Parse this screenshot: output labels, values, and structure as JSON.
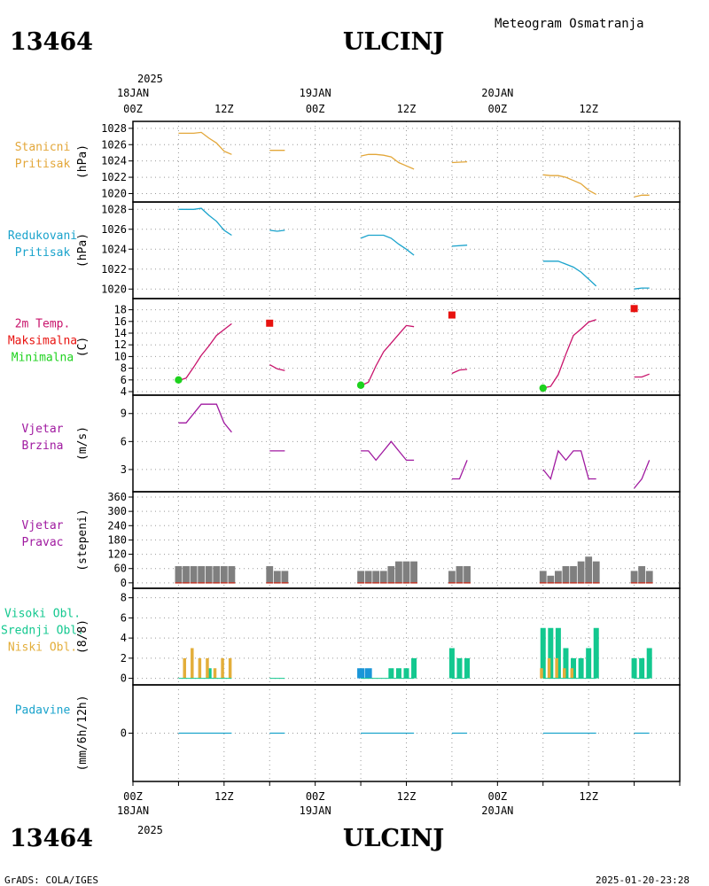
{
  "station_id": "13464",
  "station_name": "ULCINJ",
  "header_text": "Meteogram Osmatranja",
  "footer_left": "GrADS: COLA/IGES",
  "footer_right": "2025-01-20-23:28",
  "time_axis": {
    "top_year": "2025",
    "bottom_year": "2025",
    "ticks": [
      {
        "h": 0,
        "hour": "00Z",
        "day": "18JAN"
      },
      {
        "h": 12,
        "hour": "12Z",
        "day": ""
      },
      {
        "h": 24,
        "hour": "00Z",
        "day": "19JAN"
      },
      {
        "h": 36,
        "hour": "12Z",
        "day": ""
      },
      {
        "h": 48,
        "hour": "00Z",
        "day": "20JAN"
      },
      {
        "h": 60,
        "hour": "12Z",
        "day": ""
      }
    ]
  },
  "colors": {
    "pressure_station": "#e3a73a",
    "pressure_reduced": "#1aa3cc",
    "temp_line": "#c8136b",
    "temp_max": "#e8120f",
    "temp_min": "#1ed21e",
    "wind": "#a01aa0",
    "wind_dir_bar": "#7f7f7f",
    "wind_dir_base": "#c0392b",
    "cloud_high": "#13c88f",
    "cloud_mid": "#1a96d8",
    "cloud_low": "#e3ae3a",
    "precip": "#1aa3cc"
  },
  "chart_data": [
    {
      "id": "stanicni",
      "type": "line",
      "labels": [
        "Stanicni",
        "Pritisak"
      ],
      "label_colors": [
        "#e3a73a",
        "#e3a73a"
      ],
      "ylabel": "(hPa)",
      "ylim": [
        1019.4,
        1028.2
      ],
      "yticks": [
        1020,
        1022,
        1024,
        1026,
        1028
      ],
      "grid": true,
      "series": [
        {
          "color": "#e3a73a",
          "segments": [
            [
              [
                6,
                1027.4
              ],
              [
                7,
                1027.4
              ],
              [
                8,
                1027.4
              ],
              [
                9,
                1027.5
              ],
              [
                10,
                1026.8
              ],
              [
                11,
                1026.2
              ],
              [
                12,
                1025.2
              ],
              [
                13,
                1024.8
              ]
            ],
            [
              [
                18,
                1025.3
              ],
              [
                20,
                1025.3
              ]
            ],
            [
              [
                30,
                1024.6
              ],
              [
                31,
                1024.8
              ],
              [
                32,
                1024.8
              ],
              [
                33,
                1024.7
              ],
              [
                34,
                1024.5
              ],
              [
                35,
                1023.8
              ],
              [
                36,
                1023.4
              ],
              [
                37,
                1023.0
              ]
            ],
            [
              [
                42,
                1023.8
              ],
              [
                44,
                1023.9
              ]
            ],
            [
              [
                54,
                1022.3
              ],
              [
                55,
                1022.2
              ],
              [
                56,
                1022.2
              ],
              [
                57,
                1022.0
              ],
              [
                58,
                1021.6
              ],
              [
                59,
                1021.2
              ],
              [
                60,
                1020.4
              ],
              [
                61,
                1019.9
              ]
            ],
            [
              [
                66,
                1019.6
              ],
              [
                67,
                1019.8
              ],
              [
                68,
                1019.8
              ]
            ]
          ]
        }
      ]
    },
    {
      "id": "redukovani",
      "type": "line",
      "labels": [
        "Redukovani",
        "Pritisak"
      ],
      "label_colors": [
        "#1aa3cc",
        "#1aa3cc"
      ],
      "ylabel": "(hPa)",
      "ylim": [
        1019.4,
        1028.2
      ],
      "yticks": [
        1020,
        1022,
        1024,
        1026,
        1028
      ],
      "grid": true,
      "series": [
        {
          "color": "#1aa3cc",
          "segments": [
            [
              [
                6,
                1028.0
              ],
              [
                7,
                1028.0
              ],
              [
                8,
                1028.0
              ],
              [
                9,
                1028.1
              ],
              [
                10,
                1027.4
              ],
              [
                11,
                1026.8
              ],
              [
                12,
                1025.9
              ],
              [
                13,
                1025.4
              ]
            ],
            [
              [
                18,
                1025.9
              ],
              [
                19,
                1025.8
              ],
              [
                20,
                1025.9
              ]
            ],
            [
              [
                30,
                1025.1
              ],
              [
                31,
                1025.4
              ],
              [
                32,
                1025.4
              ],
              [
                33,
                1025.4
              ],
              [
                34,
                1025.1
              ],
              [
                35,
                1024.5
              ],
              [
                36,
                1024.0
              ],
              [
                37,
                1023.4
              ]
            ],
            [
              [
                42,
                1024.3
              ],
              [
                44,
                1024.4
              ]
            ],
            [
              [
                54,
                1022.8
              ],
              [
                55,
                1022.8
              ],
              [
                56,
                1022.8
              ],
              [
                57,
                1022.5
              ],
              [
                58,
                1022.2
              ],
              [
                59,
                1021.7
              ],
              [
                60,
                1021.0
              ],
              [
                61,
                1020.3
              ]
            ],
            [
              [
                66,
                1020.0
              ],
              [
                67,
                1020.1
              ],
              [
                68,
                1020.1
              ]
            ]
          ]
        }
      ]
    },
    {
      "id": "temperatura",
      "type": "line",
      "labels": [
        "2m Temp.",
        "Maksimalna",
        "Minimalna"
      ],
      "label_colors": [
        "#c8136b",
        "#e8120f",
        "#1ed21e"
      ],
      "ylabel": "(C)",
      "ylim": [
        4,
        19
      ],
      "yticks": [
        4,
        6,
        8,
        10,
        12,
        14,
        16,
        18
      ],
      "grid": true,
      "series": [
        {
          "color": "#c8136b",
          "segments": [
            [
              [
                6,
                5.9
              ],
              [
                7,
                6.3
              ],
              [
                8,
                8.2
              ],
              [
                9,
                10.2
              ],
              [
                10,
                11.8
              ],
              [
                11,
                13.6
              ],
              [
                12,
                14.6
              ],
              [
                13,
                15.6
              ]
            ],
            [
              [
                18,
                8.6
              ],
              [
                19,
                7.9
              ],
              [
                20,
                7.6
              ]
            ],
            [
              [
                30,
                5.0
              ],
              [
                31,
                5.6
              ],
              [
                32,
                8.4
              ],
              [
                33,
                10.8
              ],
              [
                34,
                12.3
              ],
              [
                35,
                13.8
              ],
              [
                36,
                15.3
              ],
              [
                37,
                15.1
              ]
            ],
            [
              [
                42,
                7.1
              ],
              [
                43,
                7.7
              ],
              [
                44,
                7.8
              ]
            ],
            [
              [
                54,
                4.6
              ],
              [
                55,
                4.9
              ],
              [
                56,
                6.9
              ],
              [
                57,
                10.4
              ],
              [
                58,
                13.6
              ],
              [
                59,
                14.7
              ],
              [
                60,
                15.9
              ],
              [
                61,
                16.3
              ]
            ],
            [
              [
                66,
                6.5
              ],
              [
                67,
                6.5
              ],
              [
                68,
                7.0
              ]
            ]
          ]
        }
      ],
      "maxima": [
        [
          18,
          15.7
        ],
        [
          42,
          17.1
        ],
        [
          66,
          18.2
        ]
      ],
      "minima": [
        [
          6,
          6.0
        ],
        [
          30,
          5.1
        ],
        [
          54,
          4.6
        ]
      ]
    },
    {
      "id": "vjetar_brzina",
      "type": "line",
      "labels": [
        "Vjetar",
        "Brzina"
      ],
      "label_colors": [
        "#a01aa0",
        "#a01aa0"
      ],
      "ylabel": "(m/s)",
      "ylim": [
        1,
        10.4
      ],
      "yticks": [
        3,
        6,
        9
      ],
      "grid": true,
      "series": [
        {
          "color": "#a01aa0",
          "segments": [
            [
              [
                6,
                8
              ],
              [
                7,
                8
              ],
              [
                8,
                9
              ],
              [
                9,
                10
              ],
              [
                10,
                10
              ],
              [
                11,
                10
              ],
              [
                12,
                8
              ],
              [
                13,
                7
              ]
            ],
            [
              [
                18,
                5
              ],
              [
                20,
                5
              ]
            ],
            [
              [
                30,
                5
              ],
              [
                31,
                5
              ],
              [
                32,
                4
              ],
              [
                33,
                5
              ],
              [
                34,
                6
              ],
              [
                35,
                5
              ],
              [
                36,
                4
              ],
              [
                37,
                4
              ]
            ],
            [
              [
                42,
                2
              ],
              [
                43,
                2
              ],
              [
                44,
                4
              ]
            ],
            [
              [
                54,
                3
              ],
              [
                55,
                2
              ],
              [
                56,
                5
              ],
              [
                57,
                4
              ],
              [
                58,
                5
              ],
              [
                59,
                5
              ],
              [
                60,
                2
              ],
              [
                61,
                2
              ]
            ],
            [
              [
                66,
                1
              ],
              [
                67,
                2
              ],
              [
                68,
                4
              ]
            ]
          ]
        }
      ]
    },
    {
      "id": "vjetar_pravac",
      "type": "bar",
      "labels": [
        "Vjetar",
        "Pravac"
      ],
      "label_colors": [
        "#a01aa0",
        "#a01aa0"
      ],
      "ylabel": "(stepeni)",
      "ylim": [
        -8,
        360
      ],
      "yticks": [
        0,
        60,
        120,
        180,
        240,
        300,
        360
      ],
      "grid": true,
      "bars": [
        [
          6,
          70
        ],
        [
          7,
          70
        ],
        [
          8,
          70
        ],
        [
          9,
          70
        ],
        [
          10,
          70
        ],
        [
          11,
          70
        ],
        [
          12,
          70
        ],
        [
          13,
          70
        ],
        [
          18,
          70
        ],
        [
          19,
          50
        ],
        [
          20,
          50
        ],
        [
          30,
          50
        ],
        [
          31,
          50
        ],
        [
          32,
          50
        ],
        [
          33,
          50
        ],
        [
          34,
          70
        ],
        [
          35,
          90
        ],
        [
          36,
          90
        ],
        [
          37,
          90
        ],
        [
          42,
          50
        ],
        [
          43,
          70
        ],
        [
          44,
          70
        ],
        [
          54,
          50
        ],
        [
          55,
          30
        ],
        [
          56,
          50
        ],
        [
          57,
          70
        ],
        [
          58,
          70
        ],
        [
          59,
          90
        ],
        [
          60,
          110
        ],
        [
          61,
          90
        ],
        [
          66,
          50
        ],
        [
          67,
          70
        ],
        [
          68,
          50
        ]
      ]
    },
    {
      "id": "oblacnost",
      "type": "bar",
      "labels": [
        "Visoki Obl.",
        "Srednji Obl.",
        "Niski Obl."
      ],
      "label_colors": [
        "#13c88f",
        "#13c88f",
        "#e3ae3a"
      ],
      "ylabel": "(8/8)",
      "ylim": [
        -0.3,
        8.5
      ],
      "yticks": [
        0,
        2,
        4,
        6,
        8
      ],
      "grid": true,
      "low": [
        [
          7,
          2
        ],
        [
          8,
          3
        ],
        [
          9,
          2
        ],
        [
          10,
          2
        ],
        [
          11,
          1
        ],
        [
          12,
          2
        ],
        [
          13,
          2
        ],
        [
          54,
          1
        ],
        [
          55,
          2
        ],
        [
          56,
          2
        ],
        [
          57,
          1
        ],
        [
          58,
          1
        ]
      ],
      "mid": [
        [
          30,
          1
        ],
        [
          31,
          1
        ]
      ],
      "high": [
        [
          10,
          1
        ],
        [
          34,
          1
        ],
        [
          35,
          1
        ],
        [
          36,
          1
        ],
        [
          37,
          2
        ],
        [
          42,
          3
        ],
        [
          43,
          2
        ],
        [
          44,
          2
        ],
        [
          54,
          5
        ],
        [
          55,
          5
        ],
        [
          56,
          5
        ],
        [
          57,
          3
        ],
        [
          58,
          2
        ],
        [
          59,
          2
        ],
        [
          60,
          3
        ],
        [
          61,
          5
        ],
        [
          66,
          2
        ],
        [
          67,
          2
        ],
        [
          68,
          3
        ]
      ]
    },
    {
      "id": "padavine",
      "type": "line",
      "labels": [
        "Padavine"
      ],
      "label_colors": [
        "#1aa3cc"
      ],
      "ylabel": "(mm/6h/12h)",
      "ylim": [
        -6,
        6
      ],
      "yticks": [
        0
      ],
      "grid": true,
      "series": [
        {
          "color": "#1aa3cc",
          "segments": [
            [
              [
                6,
                0
              ],
              [
                13,
                0
              ]
            ],
            [
              [
                18,
                0
              ],
              [
                20,
                0
              ]
            ],
            [
              [
                30,
                0
              ],
              [
                37,
                0
              ]
            ],
            [
              [
                42,
                0
              ],
              [
                44,
                0
              ]
            ],
            [
              [
                54,
                0
              ],
              [
                61,
                0
              ]
            ],
            [
              [
                66,
                0
              ],
              [
                68,
                0
              ]
            ]
          ]
        }
      ]
    }
  ]
}
